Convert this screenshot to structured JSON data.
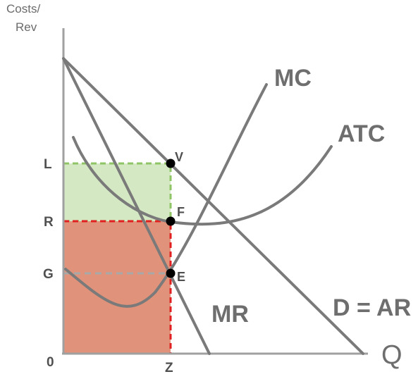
{
  "axes": {
    "y_label_line1": "Costs/",
    "y_label_line2": "Rev",
    "x_label": "Q",
    "origin": "0"
  },
  "y_ticks": {
    "L": "L",
    "R": "R",
    "G": "G"
  },
  "x_ticks": {
    "Z": "Z"
  },
  "points": {
    "V": "V",
    "F": "F",
    "E": "E"
  },
  "curves": {
    "mc": "MC",
    "atc": "ATC",
    "mr": "MR",
    "demand": "D = AR"
  },
  "colors": {
    "profit_fill": "#d4e9c3",
    "profit_border": "#8fc566",
    "cost_fill": "#e0937a",
    "cost_border": "#e02020",
    "curve": "#7a7a7a",
    "axis": "#a0a0a0",
    "guide": "#9a9a9a",
    "point": "#000000"
  }
}
